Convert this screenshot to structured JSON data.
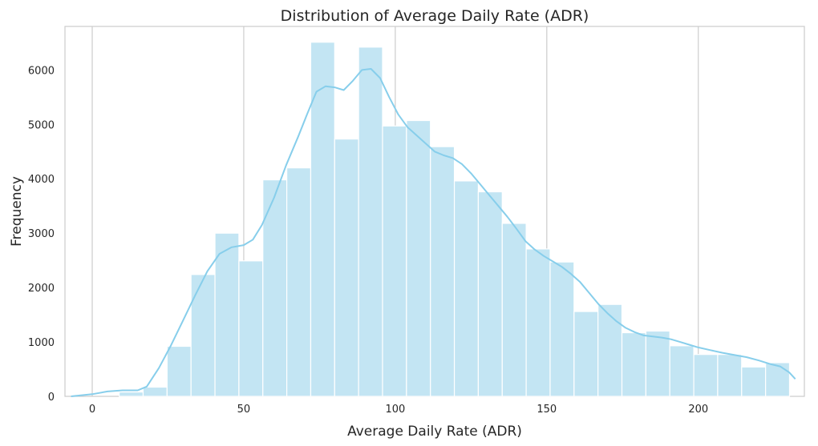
{
  "chart_data": {
    "type": "bar",
    "title": "Distribution of Average Daily Rate (ADR)",
    "xlabel": "Average Daily Rate (ADR)",
    "ylabel": "Frequency",
    "xlim": [
      -9,
      235
    ],
    "ylim": [
      0,
      6800
    ],
    "xticks": [
      0,
      50,
      100,
      150,
      200
    ],
    "yticks": [
      0,
      1000,
      2000,
      3000,
      4000,
      5000,
      6000
    ],
    "grid": "vertical",
    "colors": {
      "bar_fill": "#c3e5f3",
      "bar_edge": "#ffffff",
      "kde_line": "#87ceeb",
      "grid": "#cccccc",
      "frame": "#cccccc"
    },
    "bin_start": 1.0,
    "bin_width": 7.9,
    "bins": [
      {
        "x0": 1.0,
        "x1": 8.9,
        "value": 0
      },
      {
        "x0": 8.9,
        "x1": 16.8,
        "value": 80
      },
      {
        "x0": 16.8,
        "x1": 24.7,
        "value": 170
      },
      {
        "x0": 24.7,
        "x1": 32.6,
        "value": 920
      },
      {
        "x0": 32.6,
        "x1": 40.5,
        "value": 2240
      },
      {
        "x0": 40.5,
        "x1": 48.4,
        "value": 3000
      },
      {
        "x0": 48.4,
        "x1": 56.3,
        "value": 2490
      },
      {
        "x0": 56.3,
        "x1": 64.2,
        "value": 3980
      },
      {
        "x0": 64.2,
        "x1": 72.1,
        "value": 4200
      },
      {
        "x0": 72.1,
        "x1": 80.0,
        "value": 6510
      },
      {
        "x0": 80.0,
        "x1": 87.9,
        "value": 4730
      },
      {
        "x0": 87.9,
        "x1": 95.8,
        "value": 6420
      },
      {
        "x0": 95.8,
        "x1": 103.7,
        "value": 4970
      },
      {
        "x0": 103.7,
        "x1": 111.6,
        "value": 5070
      },
      {
        "x0": 111.6,
        "x1": 119.5,
        "value": 4590
      },
      {
        "x0": 119.5,
        "x1": 127.4,
        "value": 3960
      },
      {
        "x0": 127.4,
        "x1": 135.3,
        "value": 3760
      },
      {
        "x0": 135.3,
        "x1": 143.2,
        "value": 3180
      },
      {
        "x0": 143.2,
        "x1": 151.1,
        "value": 2710
      },
      {
        "x0": 151.1,
        "x1": 159.0,
        "value": 2470
      },
      {
        "x0": 159.0,
        "x1": 166.9,
        "value": 1560
      },
      {
        "x0": 166.9,
        "x1": 174.8,
        "value": 1690
      },
      {
        "x0": 174.8,
        "x1": 182.7,
        "value": 1170
      },
      {
        "x0": 182.7,
        "x1": 190.6,
        "value": 1200
      },
      {
        "x0": 190.6,
        "x1": 198.5,
        "value": 930
      },
      {
        "x0": 198.5,
        "x1": 206.4,
        "value": 770
      },
      {
        "x0": 206.4,
        "x1": 214.3,
        "value": 770
      },
      {
        "x0": 214.3,
        "x1": 222.2,
        "value": 540
      },
      {
        "x0": 222.2,
        "x1": 230.1,
        "value": 620
      }
    ],
    "kde": [
      [
        -7,
        0
      ],
      [
        0,
        40
      ],
      [
        5,
        90
      ],
      [
        10,
        110
      ],
      [
        15,
        110
      ],
      [
        18,
        180
      ],
      [
        22,
        520
      ],
      [
        26,
        940
      ],
      [
        30,
        1400
      ],
      [
        34,
        1860
      ],
      [
        38,
        2300
      ],
      [
        42,
        2620
      ],
      [
        46,
        2740
      ],
      [
        50,
        2780
      ],
      [
        53,
        2880
      ],
      [
        56,
        3150
      ],
      [
        60,
        3650
      ],
      [
        64,
        4250
      ],
      [
        68,
        4780
      ],
      [
        71,
        5200
      ],
      [
        74,
        5600
      ],
      [
        77,
        5700
      ],
      [
        80,
        5680
      ],
      [
        83,
        5630
      ],
      [
        86,
        5800
      ],
      [
        89,
        6000
      ],
      [
        92,
        6020
      ],
      [
        95,
        5850
      ],
      [
        98,
        5500
      ],
      [
        101,
        5180
      ],
      [
        104,
        4950
      ],
      [
        107,
        4800
      ],
      [
        110,
        4650
      ],
      [
        113,
        4500
      ],
      [
        116,
        4430
      ],
      [
        119,
        4380
      ],
      [
        122,
        4270
      ],
      [
        125,
        4100
      ],
      [
        128,
        3900
      ],
      [
        131,
        3700
      ],
      [
        134,
        3500
      ],
      [
        137,
        3300
      ],
      [
        140,
        3080
      ],
      [
        143,
        2850
      ],
      [
        146,
        2700
      ],
      [
        149,
        2580
      ],
      [
        152,
        2480
      ],
      [
        155,
        2380
      ],
      [
        158,
        2250
      ],
      [
        161,
        2100
      ],
      [
        164,
        1900
      ],
      [
        167,
        1700
      ],
      [
        170,
        1530
      ],
      [
        173,
        1380
      ],
      [
        176,
        1260
      ],
      [
        179,
        1180
      ],
      [
        182,
        1120
      ],
      [
        185,
        1100
      ],
      [
        188,
        1080
      ],
      [
        191,
        1050
      ],
      [
        194,
        1000
      ],
      [
        197,
        950
      ],
      [
        200,
        900
      ],
      [
        204,
        850
      ],
      [
        208,
        800
      ],
      [
        212,
        760
      ],
      [
        216,
        720
      ],
      [
        220,
        660
      ],
      [
        224,
        590
      ],
      [
        227,
        550
      ],
      [
        230,
        440
      ],
      [
        232,
        320
      ]
    ]
  }
}
